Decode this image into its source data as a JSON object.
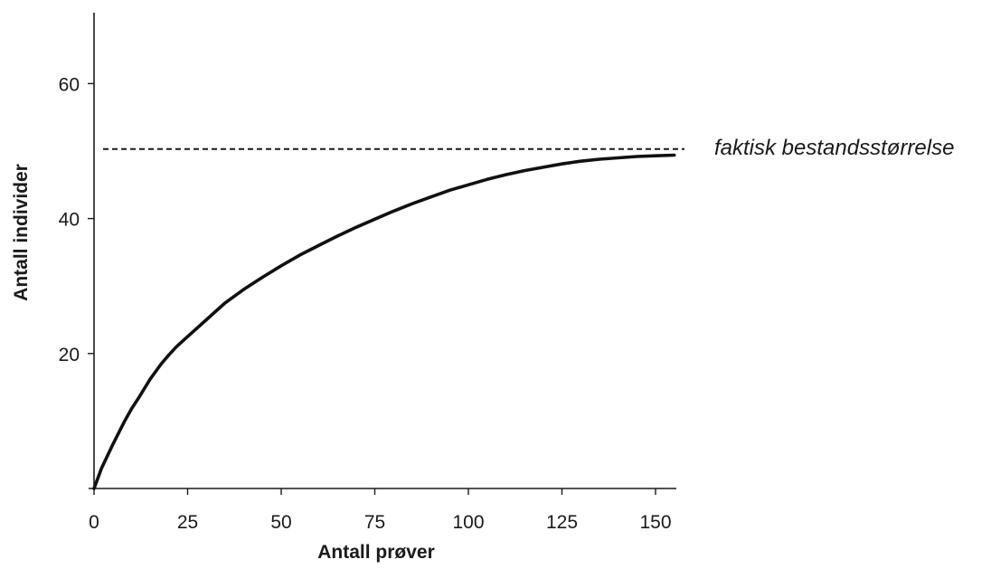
{
  "chart_data": {
    "type": "line",
    "title": "",
    "xlabel": "Antall prøver",
    "ylabel": "Antall individer",
    "xlim": [
      0,
      155
    ],
    "ylim": [
      0,
      70
    ],
    "x_ticks": [
      0,
      25,
      50,
      75,
      100,
      125,
      150
    ],
    "y_ticks": [
      20,
      40,
      60
    ],
    "grid": false,
    "series": [
      {
        "x": [
          0,
          2,
          5,
          8,
          10,
          12,
          15,
          18,
          20,
          22,
          25,
          30,
          35,
          40,
          45,
          50,
          55,
          60,
          65,
          70,
          75,
          80,
          85,
          90,
          95,
          100,
          105,
          110,
          115,
          120,
          125,
          130,
          135,
          140,
          145,
          150,
          155
        ],
        "values": [
          0,
          3,
          6.5,
          9.8,
          11.8,
          13.5,
          16.2,
          18.5,
          19.8,
          21,
          22.5,
          25,
          27.5,
          29.5,
          31.3,
          33,
          34.6,
          36,
          37.4,
          38.7,
          39.9,
          41.1,
          42.2,
          43.2,
          44.2,
          45,
          45.8,
          46.5,
          47.1,
          47.6,
          48.1,
          48.5,
          48.8,
          49,
          49.2,
          49.3,
          49.4
        ]
      }
    ],
    "reference_line": {
      "y": 50.3,
      "style": "dashed",
      "label": "faktisk bestandsstørrelse"
    }
  }
}
